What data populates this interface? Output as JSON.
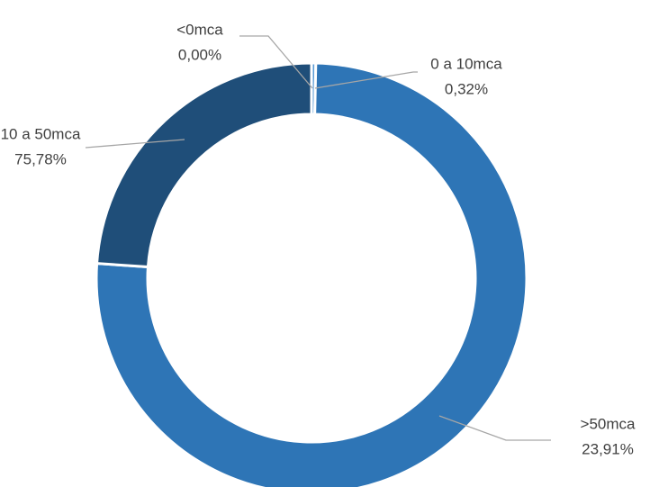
{
  "chart_data": {
    "type": "donut",
    "categories": [
      "<0mca",
      "0 a 10mca",
      "10 a 50mca",
      ">50mca"
    ],
    "values": [
      0.0,
      0.32,
      75.78,
      23.91
    ],
    "value_labels": [
      "0,00%",
      "0,32%",
      "75,78%",
      "23,91%"
    ],
    "colors": [
      "#9dc3e6",
      "#5b9bd5",
      "#2e75b6",
      "#1f4e79"
    ]
  }
}
